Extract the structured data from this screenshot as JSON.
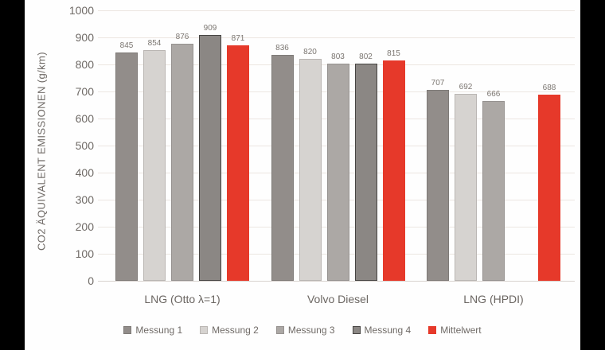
{
  "frame": {
    "background": "#000000",
    "panel_background": "#fefefe",
    "gridline_color": "#ece6e1",
    "baseline_color": "#d8d2ce"
  },
  "chart_data": {
    "type": "bar",
    "title": "",
    "xlabel": "",
    "ylabel": "CO2 ÄQUIVALENT EMISSIONEN (g/km)",
    "ylim": [
      0,
      1000
    ],
    "yticks": [
      0,
      100,
      200,
      300,
      400,
      500,
      600,
      700,
      800,
      900,
      1000
    ],
    "grid": true,
    "bar_value_labels": true,
    "legend_position": "bottom",
    "categories": [
      "LNG (Otto λ=1)",
      "Volvo Diesel",
      "LNG (HPDI)"
    ],
    "series": [
      {
        "name": "Messung 1",
        "color": "#928d8a",
        "border": "#7e7a77",
        "values": [
          845,
          836,
          707
        ]
      },
      {
        "name": "Messung 2",
        "color": "#d6d3d0",
        "border": "#bab6b3",
        "values": [
          854,
          820,
          692
        ]
      },
      {
        "name": "Messung 3",
        "color": "#aca8a5",
        "border": "#969290",
        "values": [
          876,
          803,
          666
        ]
      },
      {
        "name": "Messung 4",
        "color": "#8b8784",
        "border": "#474543",
        "values": [
          909,
          802,
          null
        ]
      },
      {
        "name": "Mittelwert",
        "color": "#e6392a",
        "border": "#e6392a",
        "values": [
          871,
          815,
          688
        ]
      }
    ]
  }
}
